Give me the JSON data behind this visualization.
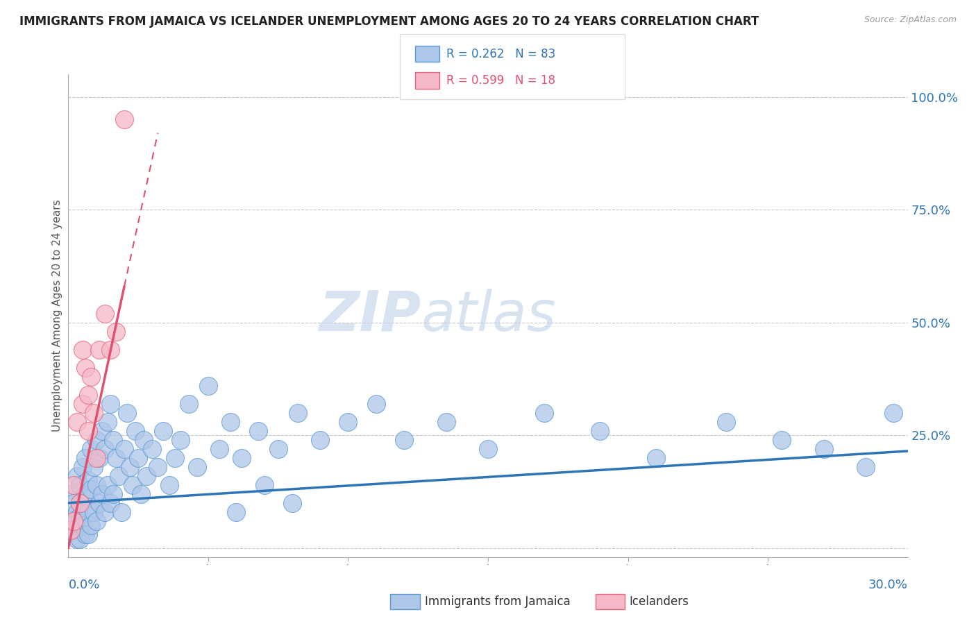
{
  "title": "IMMIGRANTS FROM JAMAICA VS ICELANDER UNEMPLOYMENT AMONG AGES 20 TO 24 YEARS CORRELATION CHART",
  "source": "Source: ZipAtlas.com",
  "ylabel": "Unemployment Among Ages 20 to 24 years",
  "xlim": [
    0.0,
    0.3
  ],
  "ylim": [
    -0.02,
    1.05
  ],
  "blue_R": 0.262,
  "blue_N": 83,
  "pink_R": 0.599,
  "pink_N": 18,
  "blue_color": "#aec6e8",
  "pink_color": "#f5b8c8",
  "blue_edge_color": "#5b9bd5",
  "pink_edge_color": "#e8647a",
  "blue_line_color": "#2e75b6",
  "pink_line_color": "#e05070",
  "legend_blue_label": "Immigrants from Jamaica",
  "legend_pink_label": "Icelanders",
  "watermark_zip": "ZIP",
  "watermark_atlas": "atlas",
  "background_color": "#ffffff",
  "grid_color": "#c8c8c8",
  "title_color": "#222222",
  "blue_scatter_x": [
    0.001,
    0.001,
    0.002,
    0.002,
    0.003,
    0.003,
    0.003,
    0.004,
    0.004,
    0.004,
    0.005,
    0.005,
    0.005,
    0.006,
    0.006,
    0.006,
    0.007,
    0.007,
    0.007,
    0.008,
    0.008,
    0.008,
    0.009,
    0.009,
    0.01,
    0.01,
    0.01,
    0.011,
    0.011,
    0.012,
    0.012,
    0.013,
    0.013,
    0.014,
    0.014,
    0.015,
    0.015,
    0.016,
    0.016,
    0.017,
    0.018,
    0.019,
    0.02,
    0.021,
    0.022,
    0.023,
    0.024,
    0.025,
    0.026,
    0.027,
    0.028,
    0.03,
    0.032,
    0.034,
    0.036,
    0.038,
    0.04,
    0.043,
    0.046,
    0.05,
    0.054,
    0.058,
    0.062,
    0.068,
    0.075,
    0.082,
    0.09,
    0.1,
    0.11,
    0.12,
    0.135,
    0.15,
    0.17,
    0.19,
    0.21,
    0.235,
    0.255,
    0.27,
    0.285,
    0.295,
    0.06,
    0.07,
    0.08
  ],
  "blue_scatter_y": [
    0.12,
    0.06,
    0.1,
    0.04,
    0.16,
    0.08,
    0.02,
    0.14,
    0.07,
    0.02,
    0.18,
    0.1,
    0.05,
    0.2,
    0.12,
    0.03,
    0.15,
    0.08,
    0.03,
    0.22,
    0.13,
    0.05,
    0.18,
    0.08,
    0.24,
    0.14,
    0.06,
    0.2,
    0.1,
    0.26,
    0.12,
    0.22,
    0.08,
    0.28,
    0.14,
    0.32,
    0.1,
    0.24,
    0.12,
    0.2,
    0.16,
    0.08,
    0.22,
    0.3,
    0.18,
    0.14,
    0.26,
    0.2,
    0.12,
    0.24,
    0.16,
    0.22,
    0.18,
    0.26,
    0.14,
    0.2,
    0.24,
    0.32,
    0.18,
    0.36,
    0.22,
    0.28,
    0.2,
    0.26,
    0.22,
    0.3,
    0.24,
    0.28,
    0.32,
    0.24,
    0.28,
    0.22,
    0.3,
    0.26,
    0.2,
    0.28,
    0.24,
    0.22,
    0.18,
    0.3,
    0.08,
    0.14,
    0.1
  ],
  "pink_scatter_x": [
    0.001,
    0.002,
    0.002,
    0.003,
    0.004,
    0.005,
    0.005,
    0.006,
    0.007,
    0.007,
    0.008,
    0.009,
    0.01,
    0.011,
    0.013,
    0.015,
    0.017,
    0.02
  ],
  "pink_scatter_y": [
    0.04,
    0.06,
    0.14,
    0.28,
    0.1,
    0.44,
    0.32,
    0.4,
    0.34,
    0.26,
    0.38,
    0.3,
    0.2,
    0.44,
    0.52,
    0.44,
    0.48,
    0.95
  ],
  "blue_trend_x0": 0.0,
  "blue_trend_y0": 0.1,
  "blue_trend_x1": 0.3,
  "blue_trend_y1": 0.215,
  "pink_trend_x0": 0.0,
  "pink_trend_y0": 0.0,
  "pink_trend_x1_solid": 0.02,
  "pink_trend_y1_solid": 0.58,
  "pink_trend_x1_dash": 0.032,
  "pink_trend_y1_dash": 0.92,
  "ytick_positions": [
    0.0,
    0.25,
    0.5,
    0.75,
    1.0
  ],
  "ytick_labels": [
    "",
    "25.0%",
    "50.0%",
    "75.0%",
    "100.0%"
  ]
}
